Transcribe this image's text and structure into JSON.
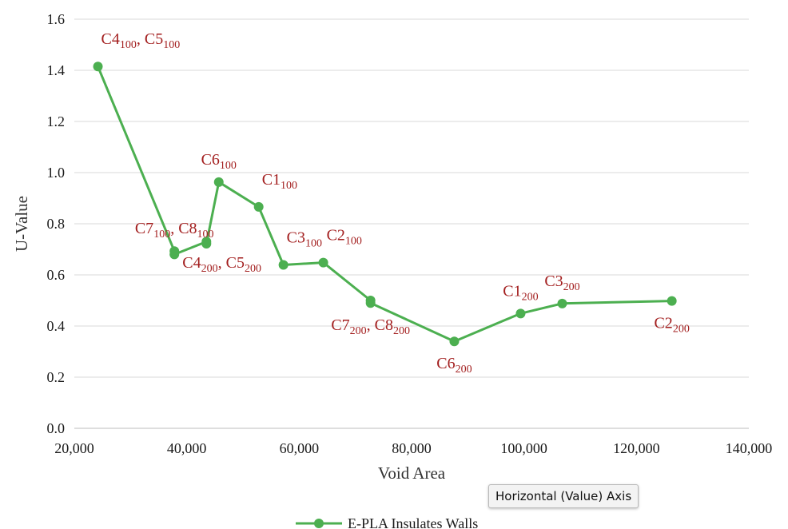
{
  "chart_data": {
    "type": "line",
    "xlabel": "Void Area",
    "ylabel": "U-Value",
    "xlim": [
      20000,
      140000
    ],
    "ylim": [
      0,
      1.6
    ],
    "xticks": [
      20000,
      40000,
      60000,
      80000,
      100000,
      120000,
      140000
    ],
    "xtick_labels": [
      "20,000",
      "40,000",
      "60,000",
      "80,000",
      "100,000",
      "120,000",
      "140,000"
    ],
    "yticks": [
      0,
      0.2,
      0.4,
      0.6,
      0.8,
      1.0,
      1.2,
      1.4,
      1.6
    ],
    "ytick_labels": [
      "0.0",
      "0.2",
      "0.4",
      "0.6",
      "0.8",
      "1.0",
      "1.2",
      "1.4",
      "1.6"
    ],
    "grid": "horizontal",
    "legend_position": "bottom",
    "series": [
      {
        "name": "E-PLA Insulates Walls",
        "color": "#4caf50",
        "points": [
          {
            "x": 24200,
            "y": 1.415
          },
          {
            "x": 37800,
            "y": 0.693
          },
          {
            "x": 37800,
            "y": 0.68
          },
          {
            "x": 43500,
            "y": 0.73
          },
          {
            "x": 43500,
            "y": 0.722
          },
          {
            "x": 45700,
            "y": 0.963
          },
          {
            "x": 52800,
            "y": 0.866
          },
          {
            "x": 57200,
            "y": 0.639
          },
          {
            "x": 64300,
            "y": 0.648
          },
          {
            "x": 72700,
            "y": 0.5
          },
          {
            "x": 72700,
            "y": 0.49
          },
          {
            "x": 87600,
            "y": 0.34
          },
          {
            "x": 99400,
            "y": 0.449
          },
          {
            "x": 106800,
            "y": 0.488
          },
          {
            "x": 126300,
            "y": 0.498
          }
        ]
      }
    ],
    "annotations": [
      {
        "text": "C4",
        "sub": "100",
        "text2": ", C5",
        "sub2": "100",
        "x": 24200,
        "y": 1.415,
        "pos": "above-right"
      },
      {
        "text": "C6",
        "sub": "100",
        "x": 45700,
        "y": 0.963,
        "pos": "above"
      },
      {
        "text": "C1",
        "sub": "100",
        "x": 52800,
        "y": 0.866,
        "pos": "above-right"
      },
      {
        "text": "C7",
        "sub": "100",
        "text2": ", C8",
        "sub2": "100",
        "x": 37800,
        "y": 0.693,
        "pos": "above"
      },
      {
        "text": "C4",
        "sub": "200",
        "text2": ", C5",
        "sub2": "200",
        "x": 43500,
        "y": 0.722,
        "pos": "below-right"
      },
      {
        "text": "C3",
        "sub": "100",
        "x": 57200,
        "y": 0.639,
        "pos": "above-right"
      },
      {
        "text": "C2",
        "sub": "100",
        "x": 64300,
        "y": 0.648,
        "pos": "above-right"
      },
      {
        "text": "C7",
        "sub": "200",
        "text2": ", C8",
        "sub2": "200",
        "x": 72700,
        "y": 0.49,
        "pos": "below"
      },
      {
        "text": "C6",
        "sub": "200",
        "x": 87600,
        "y": 0.34,
        "pos": "below"
      },
      {
        "text": "C1",
        "sub": "200",
        "x": 99400,
        "y": 0.449,
        "pos": "above"
      },
      {
        "text": "C3",
        "sub": "200",
        "x": 106800,
        "y": 0.488,
        "pos": "above"
      },
      {
        "text": "C2",
        "sub": "200",
        "x": 126300,
        "y": 0.498,
        "pos": "below"
      }
    ]
  },
  "tooltip": {
    "text": "Horizontal (Value) Axis"
  }
}
